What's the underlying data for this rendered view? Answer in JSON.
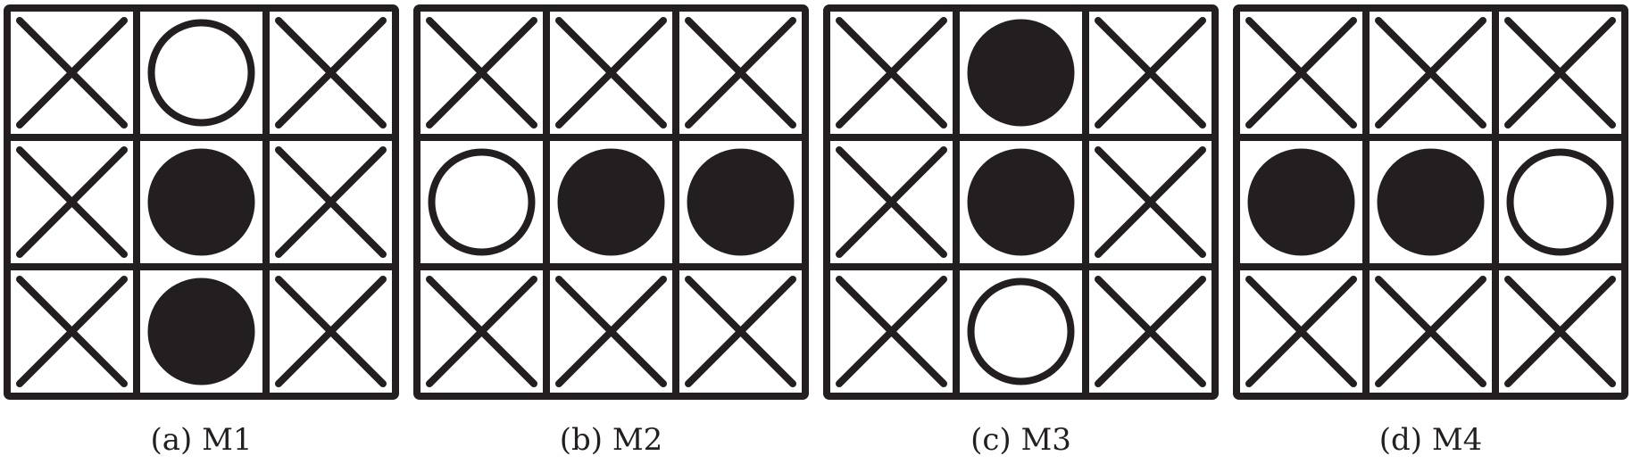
{
  "colors": {
    "ink": "#231f20",
    "background": "#ffffff"
  },
  "legend": {
    "x": "cross-mark",
    "o": "open-circle",
    "f": "filled-circle"
  },
  "panels": [
    {
      "caption": "(a) M1",
      "grid": [
        [
          "x",
          "o",
          "x"
        ],
        [
          "x",
          "f",
          "x"
        ],
        [
          "x",
          "f",
          "x"
        ]
      ]
    },
    {
      "caption": "(b) M2",
      "grid": [
        [
          "x",
          "x",
          "x"
        ],
        [
          "o",
          "f",
          "f"
        ],
        [
          "x",
          "x",
          "x"
        ]
      ]
    },
    {
      "caption": "(c) M3",
      "grid": [
        [
          "x",
          "f",
          "x"
        ],
        [
          "x",
          "f",
          "x"
        ],
        [
          "x",
          "o",
          "x"
        ]
      ]
    },
    {
      "caption": "(d) M4",
      "grid": [
        [
          "x",
          "x",
          "x"
        ],
        [
          "f",
          "f",
          "o"
        ],
        [
          "x",
          "x",
          "x"
        ]
      ]
    }
  ]
}
